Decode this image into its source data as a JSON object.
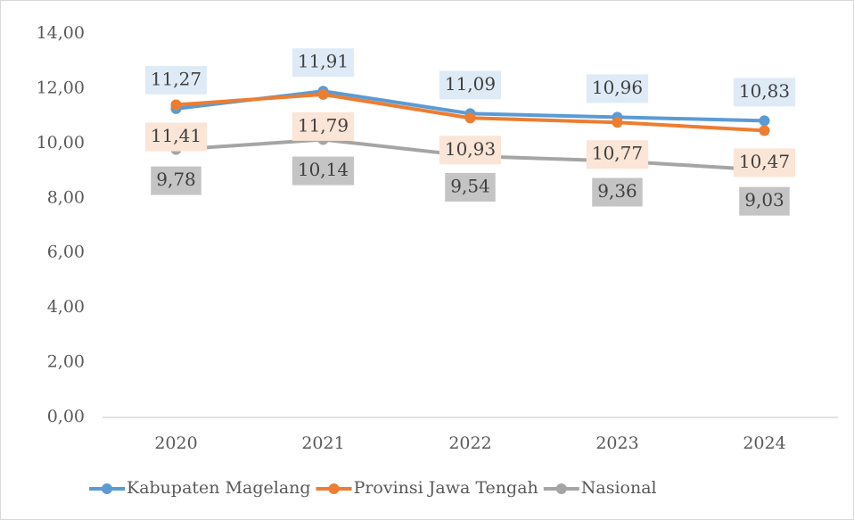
{
  "chart_data": {
    "type": "line",
    "categories": [
      "2020",
      "2021",
      "2022",
      "2023",
      "2024"
    ],
    "series": [
      {
        "name": "Kabupaten Magelang",
        "color": "#5b9bd5",
        "label_bg": "#deebf7",
        "values": [
          11.27,
          11.91,
          11.09,
          10.96,
          10.83
        ],
        "value_labels": [
          "11,27",
          "11,91",
          "11,09",
          "10,96",
          "10,83"
        ]
      },
      {
        "name": "Provinsi Jawa Tengah",
        "color": "#ed7d31",
        "label_bg": "#fbe5d6",
        "values": [
          11.41,
          11.79,
          10.93,
          10.77,
          10.47
        ],
        "value_labels": [
          "11,41",
          "11,79",
          "10,93",
          "10,77",
          "10,47"
        ]
      },
      {
        "name": "Nasional",
        "color": "#a5a5a5",
        "label_bg": "#c4c4c4",
        "values": [
          9.78,
          10.14,
          9.54,
          9.36,
          9.03
        ],
        "value_labels": [
          "9,78",
          "10,14",
          "9,54",
          "9,36",
          "9,03"
        ]
      }
    ],
    "ylim": [
      0,
      14
    ],
    "yticks": [
      {
        "value": 0,
        "label": "0,00"
      },
      {
        "value": 2,
        "label": "2,00"
      },
      {
        "value": 4,
        "label": "4,00"
      },
      {
        "value": 6,
        "label": "6,00"
      },
      {
        "value": 8,
        "label": "8,00"
      },
      {
        "value": 10,
        "label": "10,00"
      },
      {
        "value": 12,
        "label": "12,00"
      },
      {
        "value": 14,
        "label": "14,00"
      }
    ],
    "grid": false,
    "legend": "bottom"
  }
}
